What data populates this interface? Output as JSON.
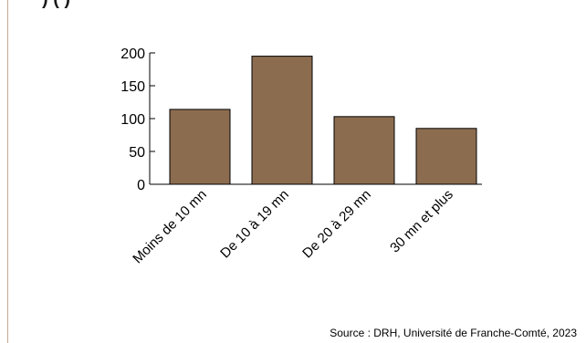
{
  "header": {
    "title_fragment": ")                         (                )"
  },
  "chart_data": {
    "type": "bar",
    "categories": [
      "Moins de 10 mn",
      "De 10 à 19 mn",
      "De 20 à 29 mn",
      "30 mn et plus"
    ],
    "values": [
      114,
      195,
      103,
      85
    ],
    "ylim": [
      0,
      200
    ],
    "yticks": [
      0,
      50,
      100,
      150,
      200
    ],
    "bar_color": "#8c6c4f",
    "grid": false,
    "legend": "none"
  },
  "footer": {
    "source": "Source : DRH, Université de Franche-Comté, 2023"
  }
}
